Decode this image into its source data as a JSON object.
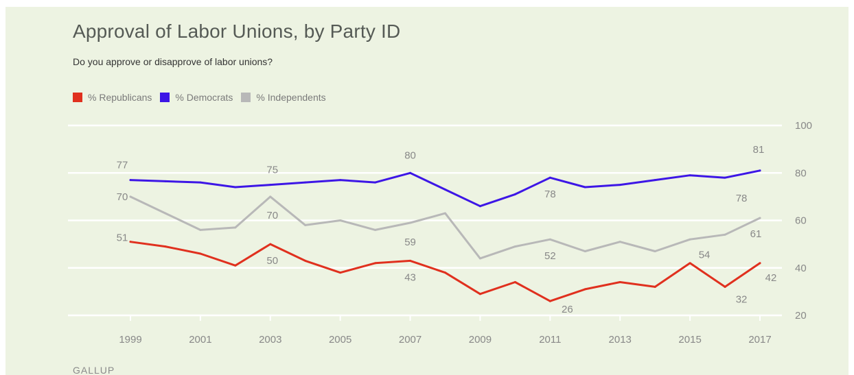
{
  "chart_data": {
    "type": "line",
    "title": "Approval of Labor Unions, by Party ID",
    "subtitle": "Do you approve or disapprove of labor unions?",
    "x": [
      1999,
      2000,
      2001,
      2002,
      2003,
      2004,
      2005,
      2006,
      2007,
      2008,
      2009,
      2010,
      2011,
      2012,
      2013,
      2014,
      2015,
      2016,
      2017
    ],
    "x_ticks": [
      "1999",
      "2001",
      "2003",
      "2005",
      "2007",
      "2009",
      "2011",
      "2013",
      "2015",
      "2017"
    ],
    "y_ticks": [
      "100",
      "80",
      "60",
      "40",
      "20"
    ],
    "ylim": [
      20,
      100
    ],
    "grid": true,
    "legend_position": "top-left",
    "series": [
      {
        "name": "% Republicans",
        "color": "#e0301e",
        "values": [
          51,
          49,
          46,
          41,
          50,
          43,
          38,
          42,
          43,
          38,
          29,
          34,
          26,
          31,
          34,
          32,
          42,
          32,
          42
        ],
        "labels": [
          {
            "x": 1999,
            "text": "51"
          },
          {
            "x": 2003,
            "text": "50"
          },
          {
            "x": 2007,
            "text": "43"
          },
          {
            "x": 2011,
            "text": "26"
          },
          {
            "x": 2016,
            "text": "32"
          },
          {
            "x": 2017,
            "text": "42"
          }
        ]
      },
      {
        "name": "% Democrats",
        "color": "#3d16e6",
        "values": [
          77,
          76.5,
          76,
          74,
          75,
          76,
          77,
          76,
          80,
          73,
          66,
          71,
          78,
          74,
          75,
          77,
          79,
          78,
          81
        ],
        "labels": [
          {
            "x": 1999,
            "text": "77"
          },
          {
            "x": 2003,
            "text": "75"
          },
          {
            "x": 2007,
            "text": "80"
          },
          {
            "x": 2011,
            "text": "78"
          },
          {
            "x": 2016,
            "text": "78"
          },
          {
            "x": 2017,
            "text": "81"
          }
        ]
      },
      {
        "name": "% Independents",
        "color": "#b8b8b8",
        "values": [
          70,
          63,
          56,
          57,
          70,
          58,
          60,
          56,
          59,
          63,
          44,
          49,
          52,
          47,
          51,
          47,
          52,
          54,
          61
        ],
        "labels": [
          {
            "x": 1999,
            "text": "70"
          },
          {
            "x": 2003,
            "text": "70"
          },
          {
            "x": 2007,
            "text": "59"
          },
          {
            "x": 2011,
            "text": "52"
          },
          {
            "x": 2016,
            "text": "54"
          },
          {
            "x": 2017,
            "text": "61"
          }
        ]
      }
    ]
  },
  "brand": "GALLUP"
}
